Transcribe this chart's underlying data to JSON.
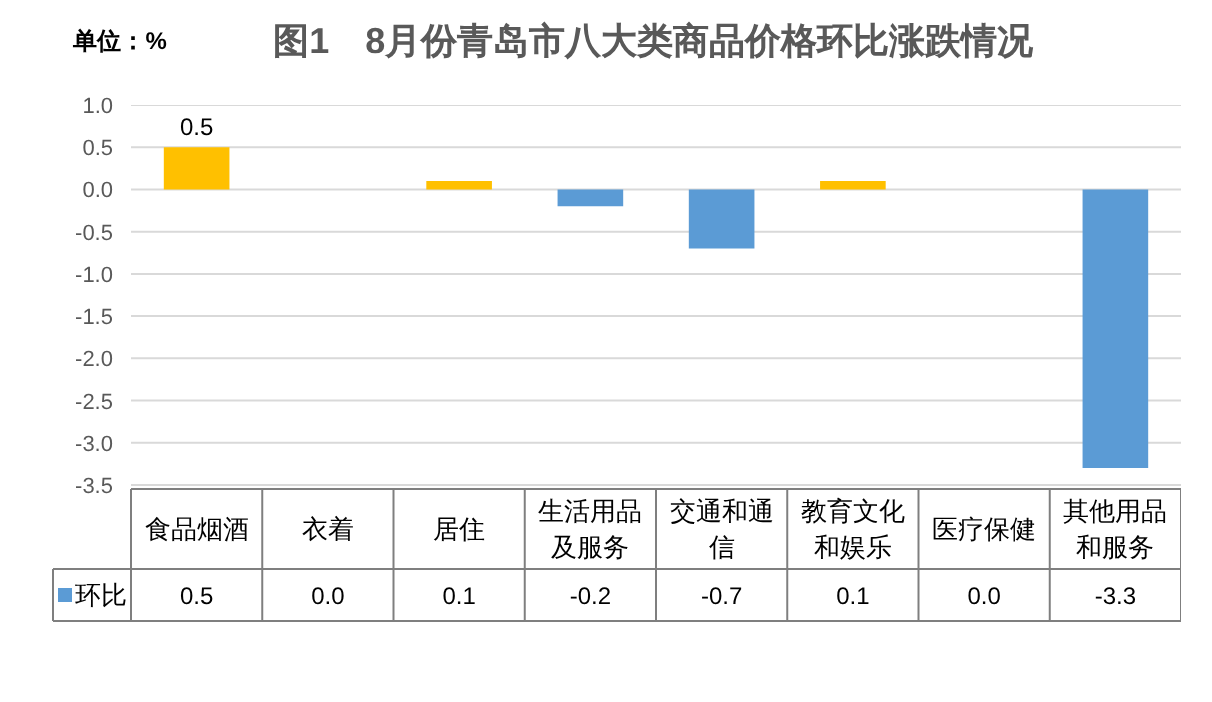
{
  "chart_data": {
    "type": "bar",
    "title": "图1　8月份青岛市八大类商品价格环比涨跌情况",
    "categories": [
      "食品烟酒",
      "衣着",
      "居住",
      "生活用品及服务",
      "交通和通信",
      "教育文化和娱乐",
      "医疗保健",
      "其他用品和服务"
    ],
    "series": [
      {
        "name": "环比",
        "color": "#5b9bd5",
        "colors": [
          "#ffc000",
          "#ffc000",
          "#ffc000",
          "#5b9bd5",
          "#5b9bd5",
          "#ffc000",
          "#ffc000",
          "#5b9bd5"
        ],
        "values": [
          0.5,
          0.0,
          0.1,
          -0.2,
          -0.7,
          0.1,
          0.0,
          -3.3
        ],
        "value_labels": [
          "0.5",
          "0.0",
          "0.1",
          "-0.2",
          "-0.7",
          "0.1",
          "0.0",
          "-3.3"
        ]
      }
    ],
    "ylim": [
      -3.5,
      1.0
    ],
    "yticks": [
      {
        "value": -3.5,
        "label": "-3.5"
      },
      {
        "value": -3.0,
        "label": "-3.0"
      },
      {
        "value": -2.5,
        "label": "-2.5"
      },
      {
        "value": -2.0,
        "label": "-2.0"
      },
      {
        "value": -1.5,
        "label": "-1.5"
      },
      {
        "value": -1.0,
        "label": "-1.0"
      },
      {
        "value": -0.5,
        "label": "-0.5"
      },
      {
        "value": 0.0,
        "label": "0.0"
      },
      {
        "value": 0.5,
        "label": "0.5"
      },
      {
        "value": 1.0,
        "label": "1.0"
      }
    ],
    "annotations": [
      "单位：%",
      "0.5"
    ],
    "grid": "y",
    "legend": "bottom"
  }
}
